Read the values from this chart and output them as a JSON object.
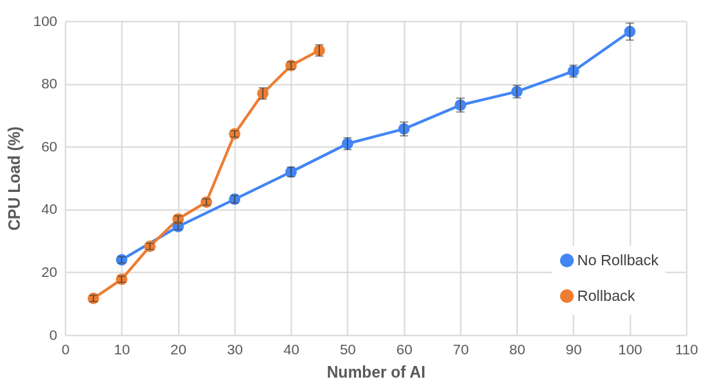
{
  "chart_data": {
    "type": "line",
    "xlabel": "Number of AI",
    "ylabel": "CPU Load (%)",
    "xlim": [
      0,
      110
    ],
    "xticks": [
      0,
      10,
      20,
      30,
      40,
      50,
      60,
      70,
      80,
      90,
      100,
      110
    ],
    "ylim": [
      0,
      100
    ],
    "yticks": [
      0,
      20,
      40,
      60,
      80,
      100
    ],
    "grid": true,
    "legend": "bottom right",
    "marker": "circle",
    "line_style": "solid",
    "series": [
      {
        "name": "No Rollback",
        "color": "#4285f4",
        "x": [
          10,
          20,
          30,
          40,
          50,
          60,
          70,
          80,
          90,
          100
        ],
        "values": [
          24,
          34.6,
          43.3,
          52,
          61,
          65.7,
          73.3,
          77.6,
          84.1,
          96.7
        ],
        "errors": [
          1,
          1,
          1.2,
          1.5,
          1.9,
          2.2,
          2.2,
          2,
          1.9,
          2.7
        ]
      },
      {
        "name": "Rollback",
        "color": "#ed7d31",
        "x": [
          5,
          10,
          15,
          20,
          25,
          30,
          35,
          40,
          45
        ],
        "values": [
          11.7,
          17.8,
          28.3,
          37,
          42.4,
          64.1,
          77,
          85.9,
          90.7
        ],
        "errors": [
          1,
          1,
          1,
          1,
          1,
          1,
          1.8,
          1.2,
          1.8
        ]
      }
    ]
  }
}
